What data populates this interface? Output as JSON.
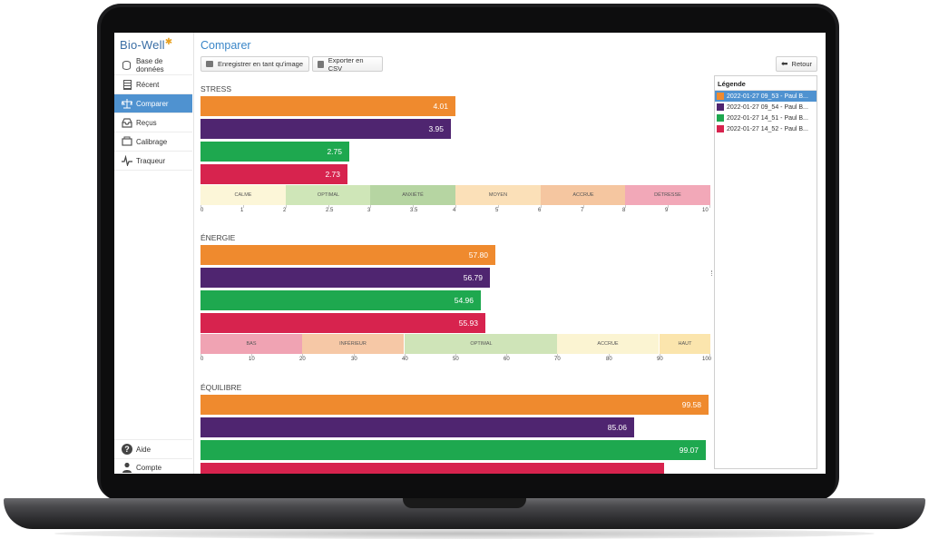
{
  "app": {
    "logo_text": "Bio-Well",
    "logo_mark": "✱",
    "page_title": "Comparer"
  },
  "sidebar": {
    "items": [
      {
        "label": "Base de données",
        "icon": "database-icon"
      },
      {
        "label": "Récent",
        "icon": "document-list-icon"
      },
      {
        "label": "Comparer",
        "icon": "scale-compare-icon",
        "active": true
      },
      {
        "label": "Reçus",
        "icon": "inbox-icon"
      },
      {
        "label": "Calibrage",
        "icon": "calibration-icon"
      },
      {
        "label": "Traqueur",
        "icon": "pulse-icon"
      }
    ],
    "bottom_items": [
      {
        "label": "Aide",
        "icon": "help-icon"
      },
      {
        "label": "Compte",
        "icon": "user-icon"
      }
    ]
  },
  "toolbar": {
    "save_image_label": "Enregistrer en tant qu'image",
    "export_csv_label": "Exporter en CSV",
    "back_label": "Retour"
  },
  "colors": {
    "series": [
      "#ef8a2e",
      "#4f2570",
      "#1ea84f",
      "#d7234e"
    ],
    "accent": "#4f92d0"
  },
  "legend": {
    "title": "Légende",
    "entries": [
      "2022-01-27 09_53 - Paul B...",
      "2022-01-27 09_54 - Paul B...",
      "2022-01-27 14_51 - Paul B...",
      "2022-01-27 14_52 - Paul B..."
    ],
    "selected_index": 0
  },
  "chart_data": [
    {
      "type": "bar",
      "title": "STRESS",
      "orientation": "horizontal",
      "values": [
        4.01,
        3.95,
        2.75,
        2.73
      ],
      "value_labels": [
        "4.01",
        "3.95",
        "2.75",
        "2.73"
      ],
      "scale_ticks": [
        0,
        1,
        2,
        2.5,
        3,
        3.5,
        4,
        5,
        6,
        7,
        8,
        9,
        10
      ],
      "tick_labels": [
        "0",
        "1",
        "2",
        "2.5",
        "3",
        "3.5",
        "4",
        "5",
        "6",
        "7",
        "8",
        "9",
        "10"
      ],
      "bands": [
        {
          "label": "CALME",
          "color": "#fcf6d8",
          "from": 0,
          "to": 2
        },
        {
          "label": "OPTIMAL",
          "color": "#cfe6b8",
          "from": 2,
          "to": 3
        },
        {
          "label": "ANXIÉTÉ",
          "color": "#b6d5a2",
          "from": 3,
          "to": 4
        },
        {
          "label": "MOYEN",
          "color": "#fbe0b8",
          "from": 4,
          "to": 6
        },
        {
          "label": "ACCRUE",
          "color": "#f5c6a0",
          "from": 6,
          "to": 8
        },
        {
          "label": "DÉTRESSE",
          "color": "#f2a8b8",
          "from": 8,
          "to": 10
        }
      ]
    },
    {
      "type": "bar",
      "title": "ÉNERGIE",
      "orientation": "horizontal",
      "values": [
        57.8,
        56.79,
        54.96,
        55.93
      ],
      "value_labels": [
        "57.80",
        "56.79",
        "54.96",
        "55.93"
      ],
      "scale_ticks": [
        0,
        10,
        20,
        30,
        40,
        50,
        60,
        70,
        80,
        90,
        100
      ],
      "tick_labels": [
        "0",
        "10",
        "20",
        "30",
        "40",
        "50",
        "60",
        "70",
        "80",
        "90",
        "100"
      ],
      "bands": [
        {
          "label": "BAS",
          "color": "#f0a3b3",
          "from": 0,
          "to": 20
        },
        {
          "label": "INFÉRIEUR",
          "color": "#f6c8a6",
          "from": 20,
          "to": 40
        },
        {
          "label": "OPTIMAL",
          "color": "#cfe4b8",
          "from": 40,
          "to": 70
        },
        {
          "label": "ACCRUE",
          "color": "#fbf4d2",
          "from": 70,
          "to": 90
        },
        {
          "label": "HAUT",
          "color": "#fbe5ad",
          "from": 90,
          "to": 100
        }
      ]
    },
    {
      "type": "bar",
      "title": "ÉQUILIBRE",
      "orientation": "horizontal",
      "values": [
        99.58,
        85.06,
        99.07,
        91
      ],
      "value_labels": [
        "99.58",
        "85.06",
        "99.07",
        ""
      ],
      "scale_ticks": [],
      "tick_labels": [],
      "max": 100,
      "bands": []
    }
  ]
}
